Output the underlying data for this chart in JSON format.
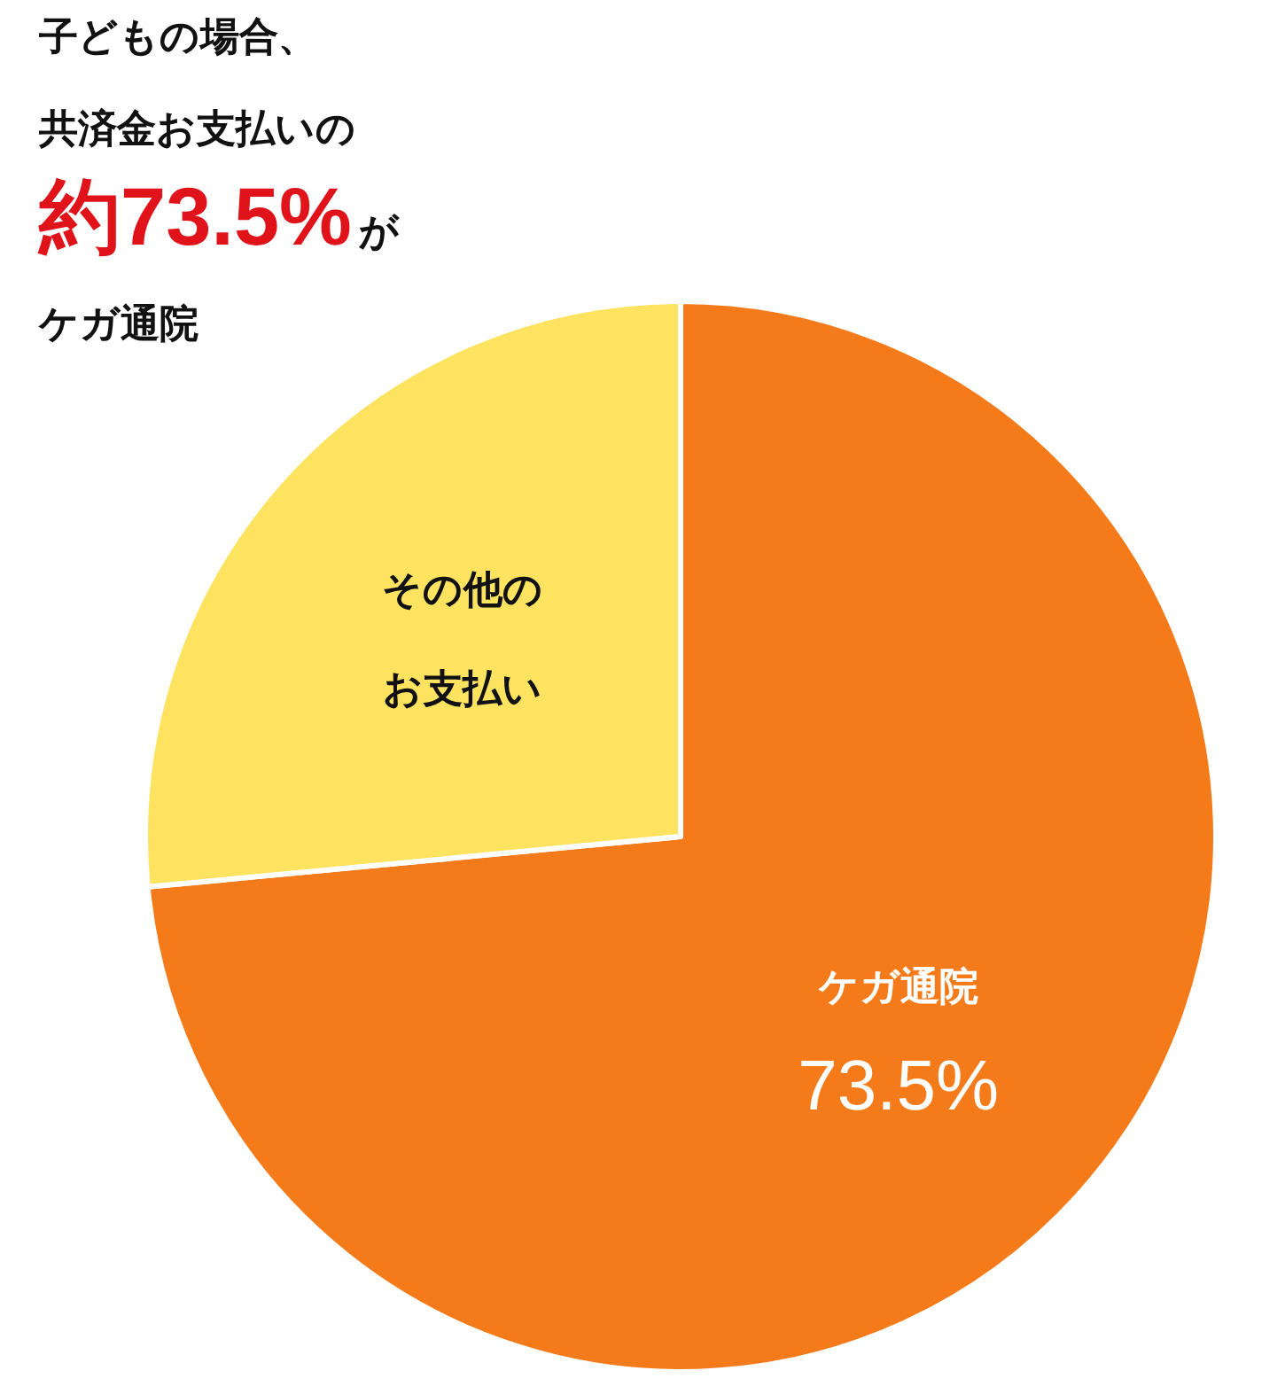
{
  "chart_data": {
    "type": "pie",
    "title": "子どもの場合、共済金お支払いの約73.5%がケガ通院",
    "categories": [
      "ケガ通院",
      "その他のお支払い"
    ],
    "values": [
      73.5,
      26.5
    ],
    "colors": [
      "#f57b1a",
      "#fde35f"
    ],
    "value_labels": [
      "73.5%",
      null
    ]
  }
}
